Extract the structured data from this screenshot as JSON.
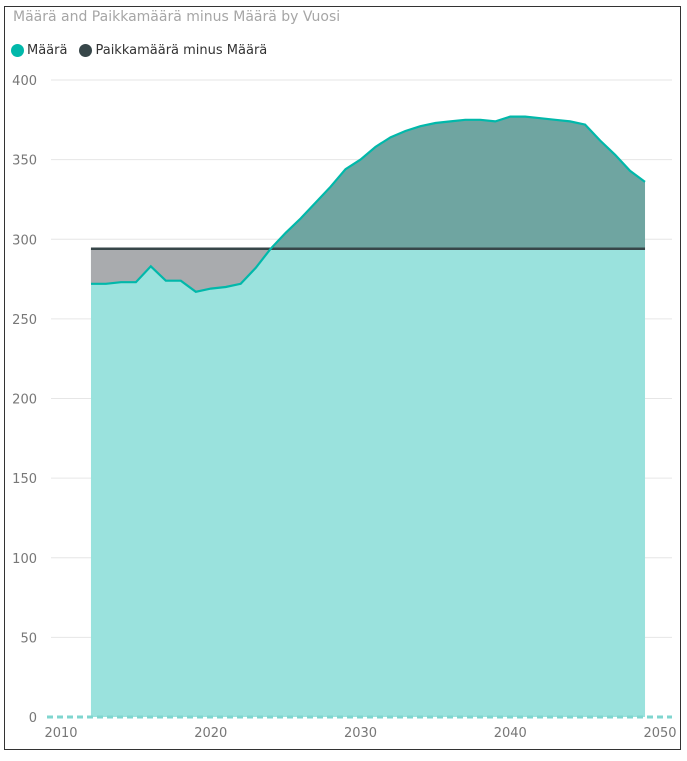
{
  "chart_data": {
    "type": "area",
    "title": "Määrä and Paikkamäärä minus Määrä by Vuosi",
    "legend": "top-left",
    "xlim": [
      2010,
      2050
    ],
    "ylim": [
      0,
      400
    ],
    "xticks": [
      2010,
      2020,
      2030,
      2040,
      2050
    ],
    "yticks": [
      0,
      50,
      100,
      150,
      200,
      250,
      300,
      350,
      400
    ],
    "capacity": 294,
    "series": [
      {
        "name": "Määrä",
        "color": "#01b8aa",
        "fill": "#9ae2dd",
        "x": [
          2012,
          2013,
          2014,
          2015,
          2016,
          2017,
          2018,
          2019,
          2020,
          2021,
          2022,
          2023,
          2024,
          2025,
          2026,
          2027,
          2028,
          2029,
          2030,
          2031,
          2032,
          2033,
          2034,
          2035,
          2036,
          2037,
          2038,
          2039,
          2040,
          2041,
          2042,
          2043,
          2044,
          2045,
          2046,
          2047,
          2048,
          2049
        ],
        "values": [
          272,
          272,
          273,
          273,
          283,
          274,
          274,
          267,
          269,
          270,
          272,
          282,
          294,
          304,
          313,
          323,
          333,
          344,
          350,
          358,
          364,
          368,
          371,
          373,
          374,
          375,
          375,
          374,
          377,
          377,
          376,
          375,
          374,
          372,
          362,
          353,
          343,
          336
        ]
      },
      {
        "name": "Paikkamäärä minus Määrä",
        "color": "#374649",
        "fill_positive": "#a9abae",
        "fill_negative": "#6fa5a1",
        "values_note": "Paikkamäärä (294) minus Määrä"
      }
    ]
  }
}
